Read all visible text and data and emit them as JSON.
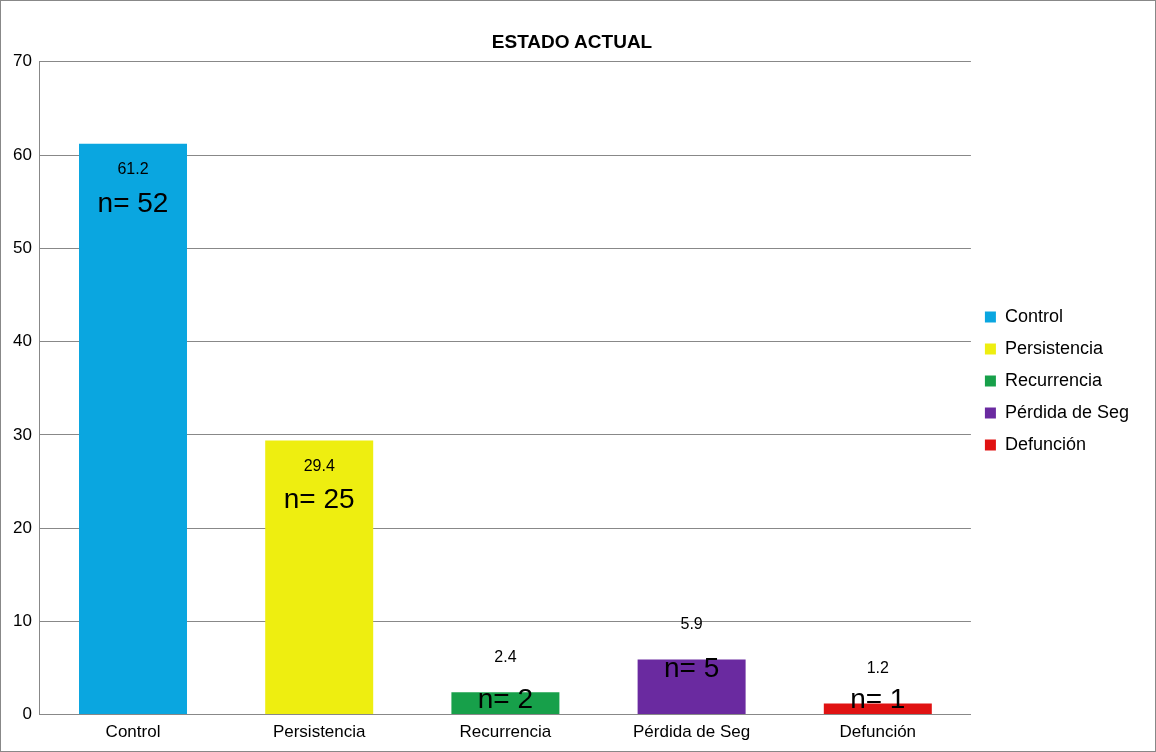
{
  "chart_data": {
    "type": "bar",
    "title": "ESTADO ACTUAL",
    "categories": [
      "Control",
      "Persistencia",
      "Recurrencia",
      "Pérdida de Seg",
      "Defunción"
    ],
    "series": [
      {
        "name": "Control",
        "color": "#0aa6e0",
        "values": [
          61.2,
          null,
          null,
          null,
          null
        ]
      },
      {
        "name": "Persistencia",
        "color": "#eeee10",
        "values": [
          null,
          29.4,
          null,
          null,
          null
        ]
      },
      {
        "name": "Recurrencia",
        "color": "#17a04a",
        "values": [
          null,
          null,
          2.4,
          null,
          null
        ]
      },
      {
        "name": "Pérdida de Seg",
        "color": "#6a2aa0",
        "values": [
          null,
          null,
          null,
          5.9,
          null
        ]
      },
      {
        "name": "Defunción",
        "color": "#e01212",
        "values": [
          null,
          null,
          null,
          null,
          1.2
        ]
      }
    ],
    "ylim": [
      0,
      70
    ],
    "yticks": [
      0,
      10,
      20,
      30,
      40,
      50,
      60,
      70
    ],
    "grid": "y",
    "legend": "right",
    "data_labels": true,
    "annotations": [
      "n= 52",
      "n= 25",
      "n= 2",
      "n= 5",
      "n= 1"
    ]
  }
}
